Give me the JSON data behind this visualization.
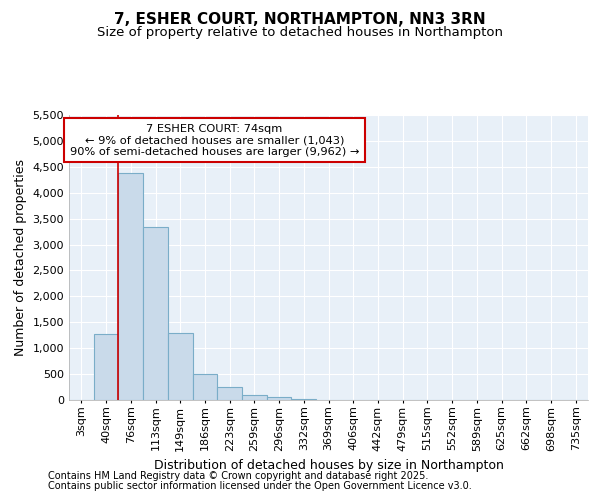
{
  "title_line1": "7, ESHER COURT, NORTHAMPTON, NN3 3RN",
  "title_line2": "Size of property relative to detached houses in Northampton",
  "xlabel": "Distribution of detached houses by size in Northampton",
  "ylabel": "Number of detached properties",
  "bar_categories": [
    "3sqm",
    "40sqm",
    "76sqm",
    "113sqm",
    "149sqm",
    "186sqm",
    "223sqm",
    "259sqm",
    "296sqm",
    "332sqm",
    "369sqm",
    "406sqm",
    "442sqm",
    "479sqm",
    "515sqm",
    "552sqm",
    "589sqm",
    "625sqm",
    "662sqm",
    "698sqm",
    "735sqm"
  ],
  "bar_values": [
    0,
    1270,
    4380,
    3330,
    1290,
    500,
    250,
    100,
    50,
    20,
    5,
    0,
    0,
    0,
    0,
    0,
    0,
    0,
    0,
    0,
    0
  ],
  "bar_color": "#c9daea",
  "bar_edge_color": "#7aadc8",
  "vline_color": "#cc0000",
  "annotation_text": "7 ESHER COURT: 74sqm\n← 9% of detached houses are smaller (1,043)\n90% of semi-detached houses are larger (9,962) →",
  "annotation_box_color": "#ffffff",
  "annotation_edge_color": "#cc0000",
  "ylim": [
    0,
    5500
  ],
  "yticks": [
    0,
    500,
    1000,
    1500,
    2000,
    2500,
    3000,
    3500,
    4000,
    4500,
    5000,
    5500
  ],
  "footer_line1": "Contains HM Land Registry data © Crown copyright and database right 2025.",
  "footer_line2": "Contains public sector information licensed under the Open Government Licence v3.0.",
  "bg_color": "#ffffff",
  "plot_bg_color": "#e8f0f8",
  "grid_color": "#ffffff",
  "title_fontsize": 11,
  "subtitle_fontsize": 9.5,
  "axis_label_fontsize": 9,
  "tick_fontsize": 8,
  "footer_fontsize": 7
}
